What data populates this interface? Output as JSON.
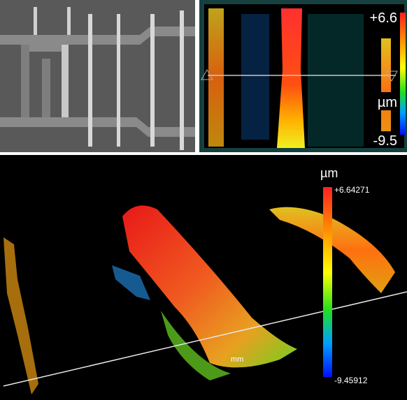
{
  "height_map": {
    "max_label": "+6.6",
    "unit": "µm",
    "min_label": "-9.5"
  },
  "view_3d": {
    "unit": "µm",
    "max_label": "+6.64271",
    "min_label": "-9.45912",
    "axis_label": "mm"
  }
}
